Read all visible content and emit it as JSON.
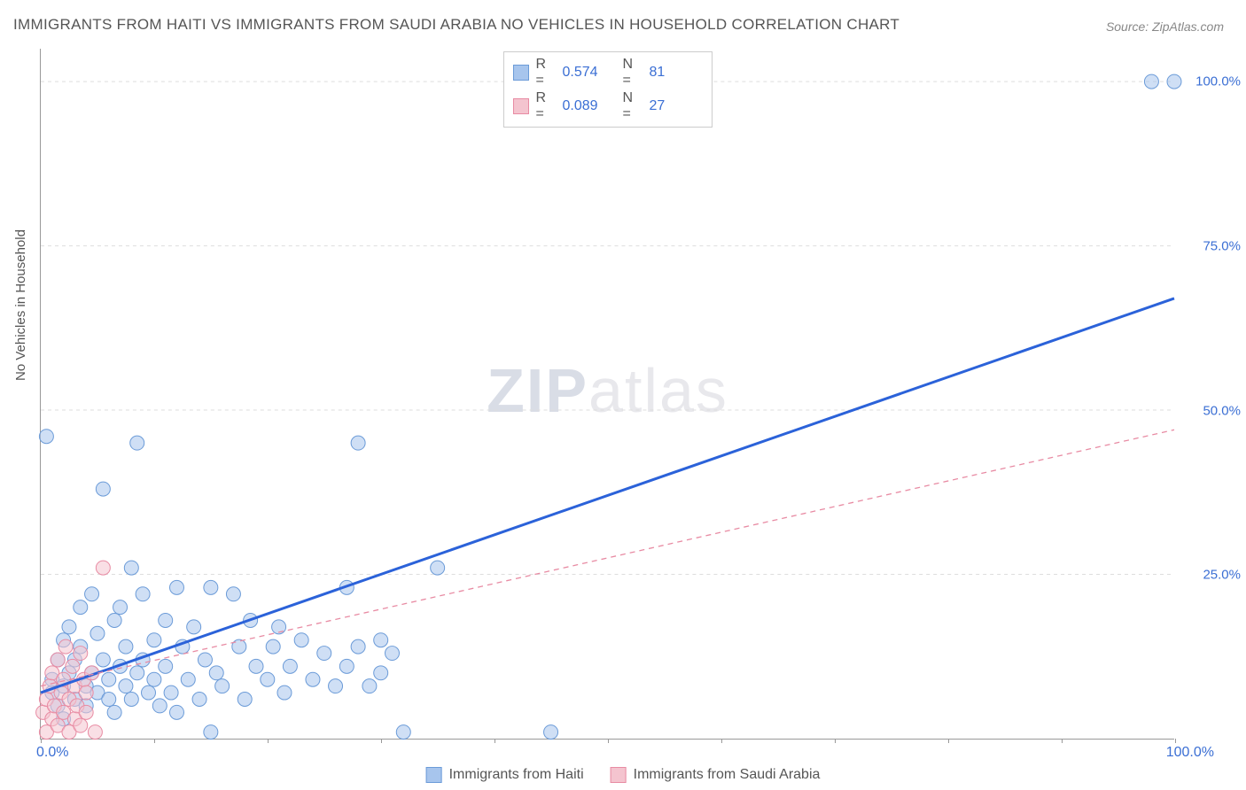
{
  "title": "IMMIGRANTS FROM HAITI VS IMMIGRANTS FROM SAUDI ARABIA NO VEHICLES IN HOUSEHOLD CORRELATION CHART",
  "source": "Source: ZipAtlas.com",
  "y_axis_label": "No Vehicles in Household",
  "watermark_bold": "ZIP",
  "watermark_rest": "atlas",
  "chart": {
    "type": "scatter",
    "xlim": [
      0,
      100
    ],
    "ylim": [
      0,
      105
    ],
    "y_ticks": [
      25,
      50,
      75,
      100
    ],
    "y_tick_labels": [
      "25.0%",
      "50.0%",
      "75.0%",
      "100.0%"
    ],
    "x_tick_positions": [
      0,
      10,
      20,
      30,
      40,
      50,
      60,
      70,
      80,
      90,
      100
    ],
    "x_tick_left_label": "0.0%",
    "x_tick_right_label": "100.0%",
    "grid_color": "#dddddd",
    "background": "#ffffff",
    "marker_radius": 8,
    "marker_opacity": 0.55,
    "series": [
      {
        "name": "Immigrants from Haiti",
        "color_fill": "#a7c5ed",
        "color_stroke": "#6b9bd8",
        "r": "0.574",
        "n": "81",
        "trend": {
          "x1": 0,
          "y1": 7,
          "x2": 100,
          "y2": 67,
          "color": "#2b62d9",
          "width": 3,
          "dash": "none"
        },
        "points": [
          [
            0.5,
            46
          ],
          [
            1,
            7
          ],
          [
            1,
            9
          ],
          [
            1.5,
            12
          ],
          [
            1.5,
            5
          ],
          [
            2,
            15
          ],
          [
            2,
            8
          ],
          [
            2,
            3
          ],
          [
            2.5,
            10
          ],
          [
            2.5,
            17
          ],
          [
            3,
            6
          ],
          [
            3,
            12
          ],
          [
            3.5,
            20
          ],
          [
            3.5,
            14
          ],
          [
            4,
            8
          ],
          [
            4,
            5
          ],
          [
            4.5,
            22
          ],
          [
            4.5,
            10
          ],
          [
            5,
            7
          ],
          [
            5,
            16
          ],
          [
            5.5,
            38
          ],
          [
            5.5,
            12
          ],
          [
            6,
            9
          ],
          [
            6,
            6
          ],
          [
            6.5,
            18
          ],
          [
            6.5,
            4
          ],
          [
            7,
            11
          ],
          [
            7,
            20
          ],
          [
            7.5,
            8
          ],
          [
            7.5,
            14
          ],
          [
            8,
            6
          ],
          [
            8,
            26
          ],
          [
            8.5,
            45
          ],
          [
            8.5,
            10
          ],
          [
            9,
            12
          ],
          [
            9,
            22
          ],
          [
            9.5,
            7
          ],
          [
            10,
            15
          ],
          [
            10,
            9
          ],
          [
            10.5,
            5
          ],
          [
            11,
            18
          ],
          [
            11,
            11
          ],
          [
            11.5,
            7
          ],
          [
            12,
            23
          ],
          [
            12,
            4
          ],
          [
            12.5,
            14
          ],
          [
            13,
            9
          ],
          [
            13.5,
            17
          ],
          [
            14,
            6
          ],
          [
            14.5,
            12
          ],
          [
            15,
            23
          ],
          [
            15,
            1
          ],
          [
            15.5,
            10
          ],
          [
            16,
            8
          ],
          [
            17,
            22
          ],
          [
            17.5,
            14
          ],
          [
            18,
            6
          ],
          [
            18.5,
            18
          ],
          [
            19,
            11
          ],
          [
            20,
            9
          ],
          [
            20.5,
            14
          ],
          [
            21,
            17
          ],
          [
            21.5,
            7
          ],
          [
            22,
            11
          ],
          [
            23,
            15
          ],
          [
            24,
            9
          ],
          [
            25,
            13
          ],
          [
            26,
            8
          ],
          [
            27,
            23
          ],
          [
            27,
            11
          ],
          [
            28,
            45
          ],
          [
            28,
            14
          ],
          [
            29,
            8
          ],
          [
            30,
            15
          ],
          [
            30,
            10
          ],
          [
            31,
            13
          ],
          [
            32,
            1
          ],
          [
            35,
            26
          ],
          [
            45,
            1
          ],
          [
            98,
            100
          ],
          [
            100,
            100
          ]
        ]
      },
      {
        "name": "Immigrants from Saudi Arabia",
        "color_fill": "#f4c4cf",
        "color_stroke": "#e88ba3",
        "r": "0.089",
        "n": "27",
        "trend": {
          "x1": 0,
          "y1": 8,
          "x2": 100,
          "y2": 47,
          "color": "#e88ba3",
          "width": 1.3,
          "dash": "6,5"
        },
        "points": [
          [
            0.2,
            4
          ],
          [
            0.5,
            6
          ],
          [
            0.5,
            1
          ],
          [
            0.8,
            8
          ],
          [
            1,
            3
          ],
          [
            1,
            10
          ],
          [
            1.2,
            5
          ],
          [
            1.5,
            12
          ],
          [
            1.5,
            2
          ],
          [
            1.8,
            7
          ],
          [
            2,
            4
          ],
          [
            2,
            9
          ],
          [
            2.2,
            14
          ],
          [
            2.5,
            6
          ],
          [
            2.5,
            1
          ],
          [
            2.8,
            11
          ],
          [
            3,
            3
          ],
          [
            3,
            8
          ],
          [
            3.2,
            5
          ],
          [
            3.5,
            13
          ],
          [
            3.5,
            2
          ],
          [
            3.8,
            9
          ],
          [
            4,
            4
          ],
          [
            4,
            7
          ],
          [
            4.5,
            10
          ],
          [
            4.8,
            1
          ],
          [
            5.5,
            26
          ]
        ]
      }
    ]
  },
  "legend_top_rows": [
    {
      "swatch_fill": "#a7c5ed",
      "swatch_stroke": "#6b9bd8",
      "r_label": "R =",
      "r_val": "0.574",
      "n_label": "N =",
      "n_val": "81"
    },
    {
      "swatch_fill": "#f4c4cf",
      "swatch_stroke": "#e88ba3",
      "r_label": "R =",
      "r_val": "0.089",
      "n_label": "N =",
      "n_val": "27"
    }
  ],
  "legend_bottom": [
    {
      "swatch_fill": "#a7c5ed",
      "swatch_stroke": "#6b9bd8",
      "label": "Immigrants from Haiti"
    },
    {
      "swatch_fill": "#f4c4cf",
      "swatch_stroke": "#e88ba3",
      "label": "Immigrants from Saudi Arabia"
    }
  ]
}
